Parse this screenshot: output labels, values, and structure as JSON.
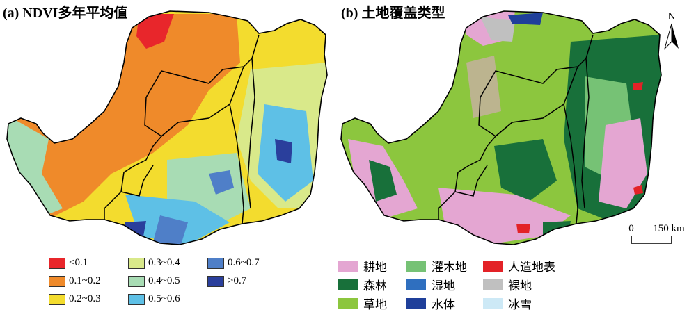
{
  "panels": {
    "a": {
      "title": "(a) NDVI多年平均值"
    },
    "b": {
      "title": "(b) 土地覆盖类型"
    }
  },
  "legend_a": [
    {
      "label": "<0.1",
      "color": "#e8262b"
    },
    {
      "label": "0.1~0.2",
      "color": "#ef8a2a"
    },
    {
      "label": "0.2~0.3",
      "color": "#f3dc2e"
    },
    {
      "label": "0.3~0.4",
      "color": "#d9e98a"
    },
    {
      "label": "0.4~0.5",
      "color": "#a8dcb4"
    },
    {
      "label": "0.5~0.6",
      "color": "#5ec0e6"
    },
    {
      "label": "0.6~0.7",
      "color": "#4f7fc8"
    },
    {
      "label": ">0.7",
      "color": "#2a3f9c"
    }
  ],
  "legend_b": [
    {
      "label": "耕地",
      "color": "#e4a6d2"
    },
    {
      "label": "森林",
      "color": "#18703a"
    },
    {
      "label": "草地",
      "color": "#8cc63e"
    },
    {
      "label": "灌木地",
      "color": "#76c275"
    },
    {
      "label": "湿地",
      "color": "#2f6fbf"
    },
    {
      "label": "水体",
      "color": "#1f3f9a"
    },
    {
      "label": "人造地表",
      "color": "#e32227"
    },
    {
      "label": "裸地",
      "color": "#c0c0c0"
    },
    {
      "label": "冰雪",
      "color": "#cde9f6"
    }
  ],
  "north_arrow": {
    "label": "N"
  },
  "scale_bar": {
    "zero": "0",
    "distance": "150 km"
  }
}
